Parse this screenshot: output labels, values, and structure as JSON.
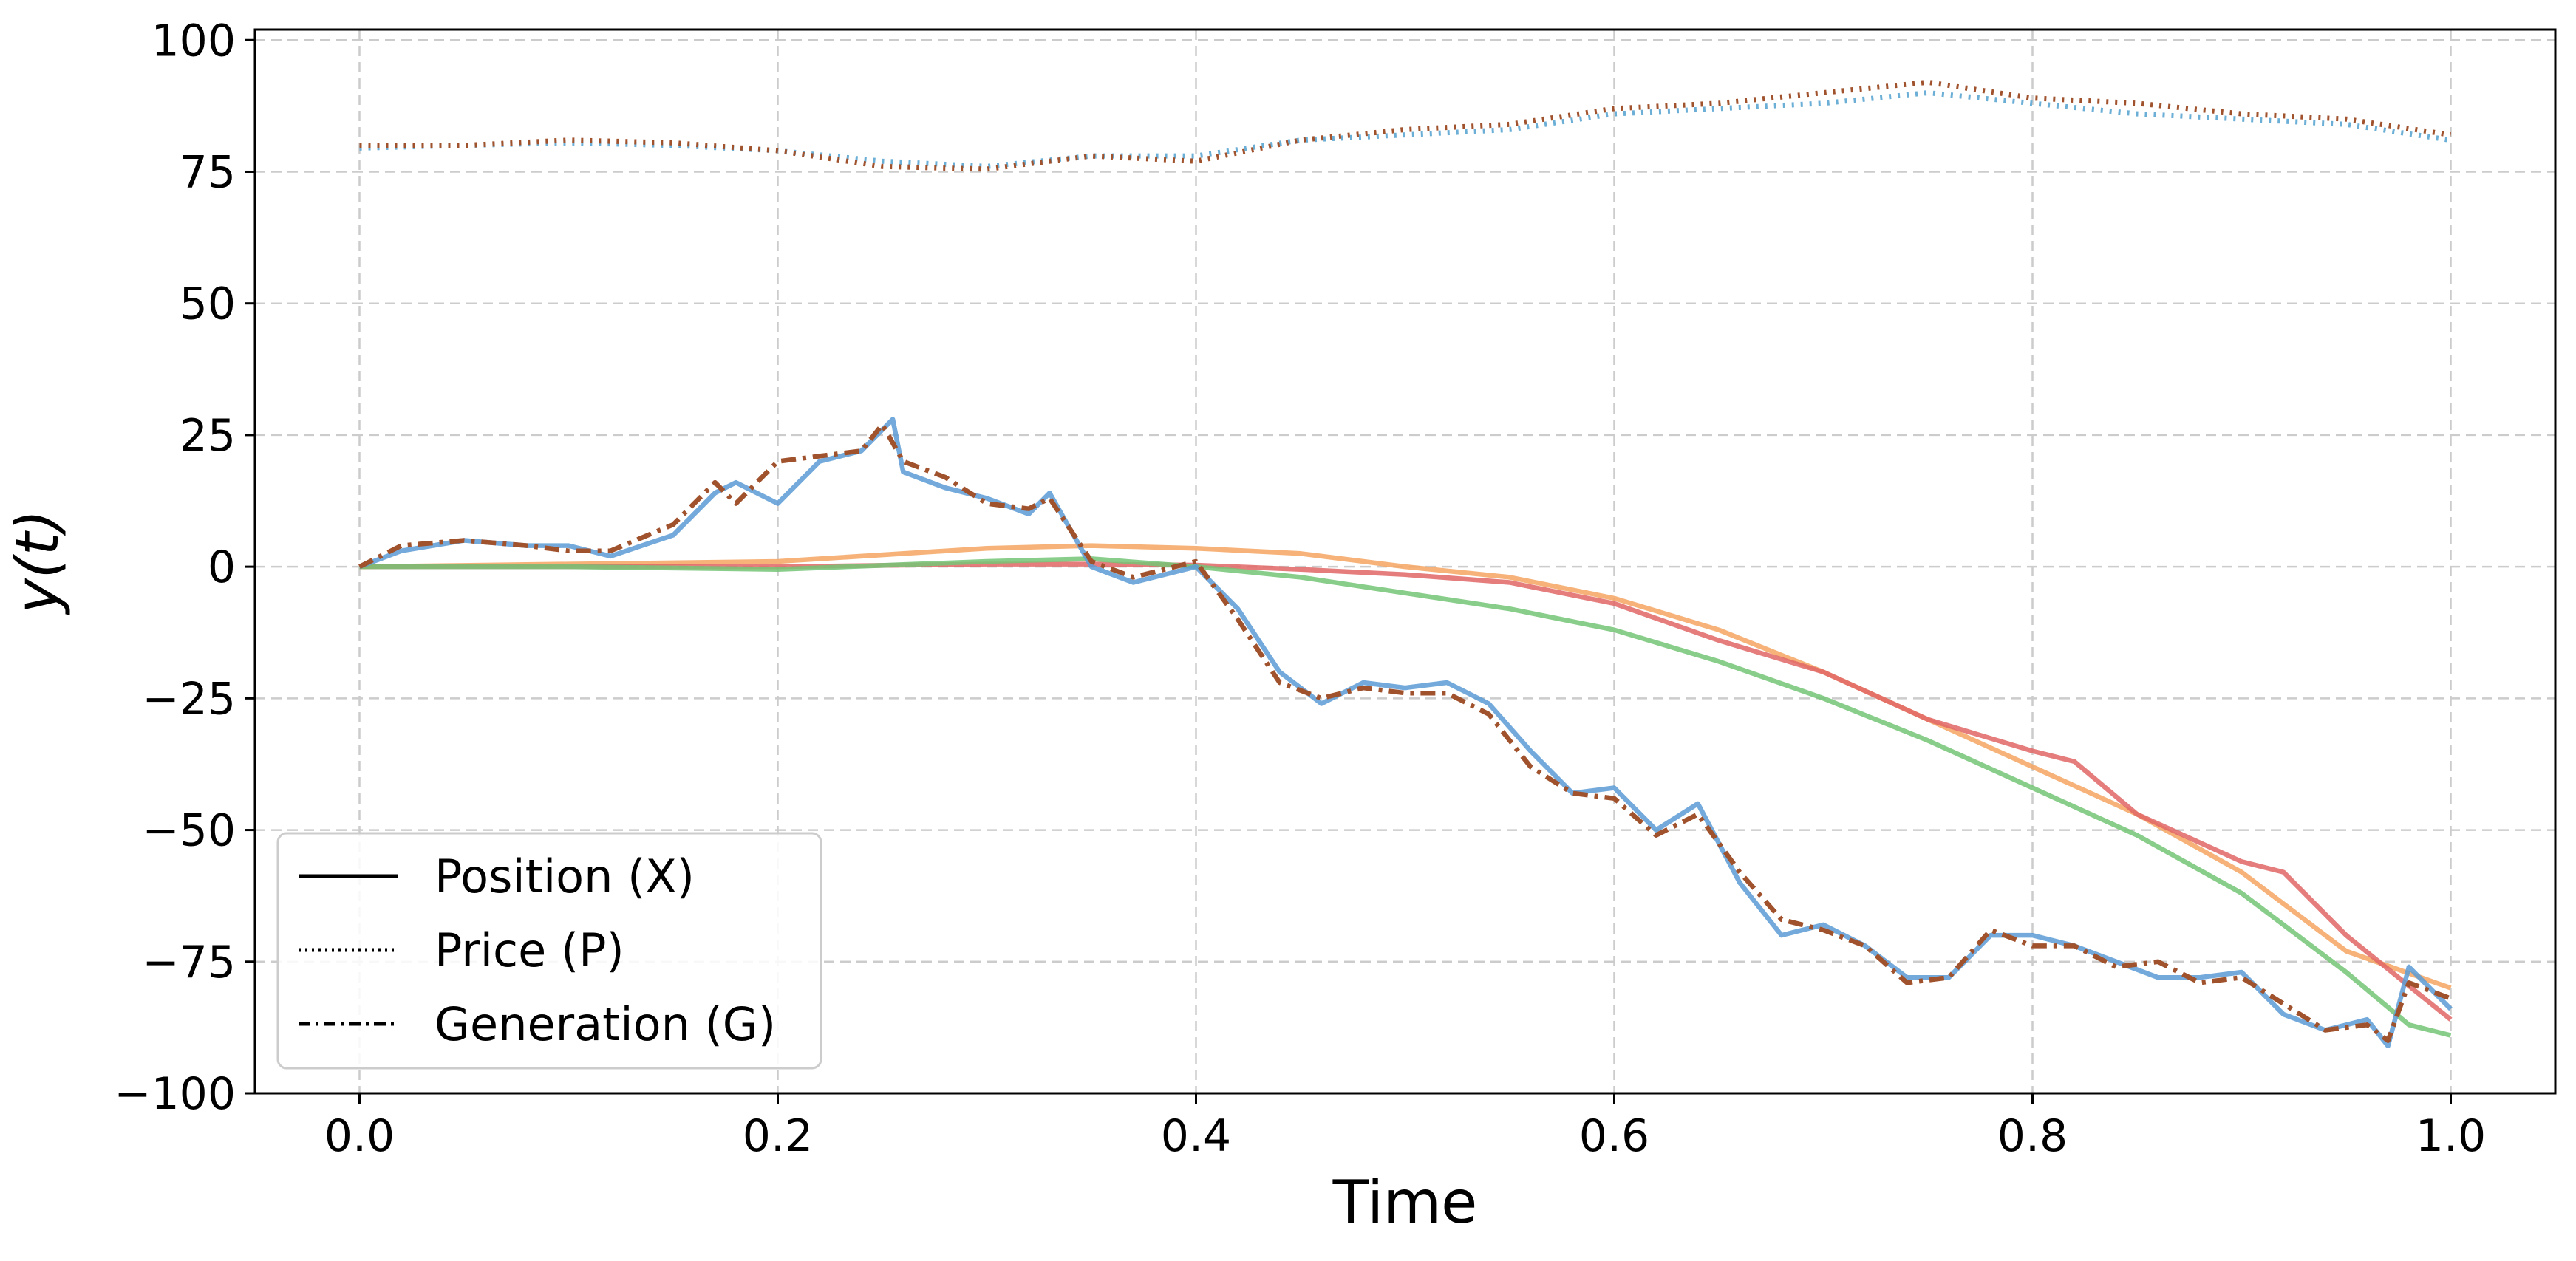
{
  "chart_data": {
    "type": "line",
    "xlabel": "Time",
    "ylabel": "y(t)",
    "xlim": [
      -0.05,
      1.05
    ],
    "ylim": [
      -100,
      102
    ],
    "xticks": [
      0.0,
      0.2,
      0.4,
      0.6,
      0.8,
      1.0
    ],
    "xtick_labels": [
      "0.0",
      "0.2",
      "0.4",
      "0.6",
      "0.8",
      "1.0"
    ],
    "yticks": [
      100,
      75,
      50,
      25,
      0,
      -25,
      -50,
      -75,
      -100
    ],
    "ytick_labels": [
      "100",
      "75",
      "50",
      "25",
      "0",
      "−25",
      "−50",
      "−75",
      "−100"
    ],
    "grid": true,
    "legend_position": "lower-left",
    "legend": [
      {
        "label": "Position (X)",
        "style": "solid"
      },
      {
        "label": "Price (P)",
        "style": "dotted"
      },
      {
        "label": "Generation (G)",
        "style": "dashdot"
      }
    ],
    "series": [
      {
        "style": "dotted",
        "color": "#6baed6",
        "x": [
          0.0,
          0.05,
          0.1,
          0.15,
          0.2,
          0.25,
          0.3,
          0.35,
          0.4,
          0.45,
          0.5,
          0.55,
          0.6,
          0.65,
          0.7,
          0.75,
          0.8,
          0.85,
          0.9,
          0.95,
          1.0
        ],
        "y": [
          79.5,
          80,
          80.5,
          80,
          79,
          77,
          76,
          78,
          78,
          81,
          82,
          83,
          86,
          87,
          88,
          90,
          88,
          86,
          85,
          84,
          81
        ]
      },
      {
        "style": "dotted",
        "color": "#a0522d",
        "x": [
          0.0,
          0.05,
          0.1,
          0.15,
          0.2,
          0.25,
          0.3,
          0.35,
          0.4,
          0.45,
          0.5,
          0.55,
          0.6,
          0.65,
          0.7,
          0.75,
          0.8,
          0.85,
          0.9,
          0.95,
          1.0
        ],
        "y": [
          80,
          80,
          81,
          80.5,
          79,
          76,
          75.5,
          78,
          77,
          81,
          83,
          84,
          87,
          88,
          90,
          92,
          89,
          88,
          86,
          85,
          82
        ]
      },
      {
        "style": "solid",
        "color": "#f4a460",
        "x": [
          0.0,
          0.1,
          0.2,
          0.3,
          0.35,
          0.4,
          0.45,
          0.5,
          0.55,
          0.6,
          0.65,
          0.7,
          0.75,
          0.8,
          0.85,
          0.9,
          0.95,
          1.0
        ],
        "y": [
          0,
          0.5,
          1,
          3.5,
          4,
          3.5,
          2.5,
          0,
          -2,
          -6,
          -12,
          -20,
          -29,
          -38,
          -47,
          -58,
          -73,
          -80
        ]
      },
      {
        "style": "solid",
        "color": "#e06666",
        "x": [
          0.0,
          0.1,
          0.2,
          0.3,
          0.35,
          0.4,
          0.45,
          0.5,
          0.55,
          0.6,
          0.65,
          0.7,
          0.75,
          0.8,
          0.82,
          0.85,
          0.9,
          0.92,
          0.95,
          1.0
        ],
        "y": [
          0,
          0,
          0,
          0.5,
          0.5,
          0.3,
          -0.5,
          -1.5,
          -3,
          -7,
          -14,
          -20,
          -29,
          -35,
          -37,
          -47,
          -56,
          -58,
          -70,
          -86
        ]
      },
      {
        "style": "solid",
        "color": "#74c476",
        "x": [
          0.0,
          0.1,
          0.2,
          0.3,
          0.35,
          0.4,
          0.45,
          0.5,
          0.55,
          0.6,
          0.65,
          0.7,
          0.75,
          0.8,
          0.85,
          0.9,
          0.95,
          0.98,
          1.0
        ],
        "y": [
          0,
          0,
          -0.5,
          1,
          1.5,
          0,
          -2,
          -5,
          -8,
          -12,
          -18,
          -25,
          -33,
          -42,
          -51,
          -62,
          -77,
          -87,
          -89
        ]
      },
      {
        "style": "solid",
        "color": "#5b9bd5",
        "x": [
          0.0,
          0.02,
          0.05,
          0.08,
          0.1,
          0.12,
          0.15,
          0.17,
          0.18,
          0.2,
          0.22,
          0.24,
          0.255,
          0.26,
          0.28,
          0.3,
          0.32,
          0.33,
          0.35,
          0.37,
          0.4,
          0.42,
          0.44,
          0.46,
          0.48,
          0.5,
          0.52,
          0.54,
          0.56,
          0.58,
          0.6,
          0.62,
          0.64,
          0.66,
          0.68,
          0.7,
          0.72,
          0.74,
          0.76,
          0.78,
          0.8,
          0.82,
          0.84,
          0.86,
          0.88,
          0.9,
          0.92,
          0.94,
          0.96,
          0.97,
          0.98,
          1.0
        ],
        "y": [
          0,
          3,
          5,
          4,
          4,
          2,
          6,
          14,
          16,
          12,
          20,
          22,
          28,
          18,
          15,
          13,
          10,
          14,
          0,
          -3,
          0,
          -8,
          -20,
          -26,
          -22,
          -23,
          -22,
          -26,
          -35,
          -43,
          -42,
          -50,
          -45,
          -60,
          -70,
          -68,
          -72,
          -78,
          -78,
          -70,
          -70,
          -72,
          -75,
          -78,
          -78,
          -77,
          -85,
          -88,
          -86,
          -91,
          -76,
          -84
        ]
      },
      {
        "style": "dashdot",
        "color": "#a0522d",
        "x": [
          0.0,
          0.02,
          0.05,
          0.08,
          0.1,
          0.12,
          0.15,
          0.17,
          0.18,
          0.2,
          0.22,
          0.24,
          0.25,
          0.26,
          0.28,
          0.3,
          0.32,
          0.33,
          0.35,
          0.37,
          0.4,
          0.42,
          0.44,
          0.46,
          0.48,
          0.5,
          0.52,
          0.54,
          0.56,
          0.58,
          0.6,
          0.62,
          0.64,
          0.66,
          0.68,
          0.7,
          0.72,
          0.74,
          0.76,
          0.78,
          0.8,
          0.82,
          0.84,
          0.86,
          0.88,
          0.9,
          0.92,
          0.94,
          0.96,
          0.97,
          0.98,
          1.0
        ],
        "y": [
          0,
          4,
          5,
          4,
          3,
          3,
          8,
          16,
          12,
          20,
          21,
          22,
          27,
          20,
          17,
          12,
          11,
          13,
          1,
          -2,
          1,
          -10,
          -22,
          -25,
          -23,
          -24,
          -24,
          -28,
          -38,
          -43,
          -44,
          -51,
          -47,
          -58,
          -67,
          -69,
          -72,
          -79,
          -78,
          -69,
          -72,
          -72,
          -76,
          -75,
          -79,
          -78,
          -83,
          -88,
          -87,
          -90,
          -79,
          -82
        ]
      }
    ]
  }
}
